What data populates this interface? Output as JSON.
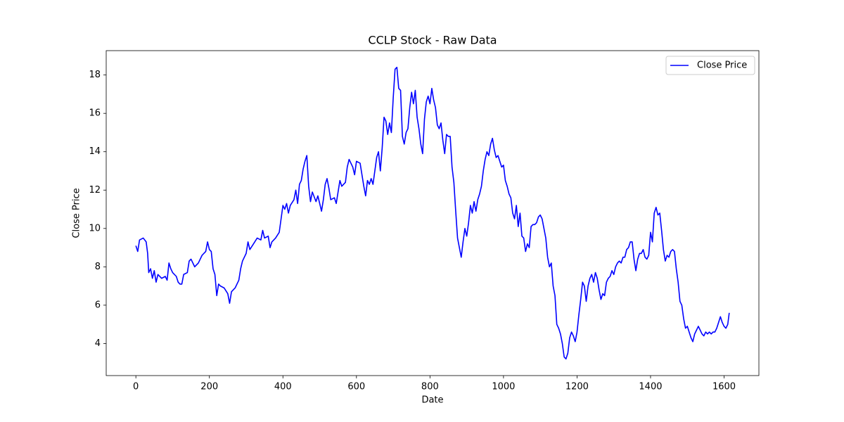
{
  "chart_data": {
    "type": "line",
    "title": "CCLP Stock - Raw Data",
    "xlabel": "Date",
    "ylabel": "Close Price",
    "x": [
      0,
      5,
      10,
      20,
      28,
      32,
      35,
      40,
      45,
      50,
      55,
      60,
      70,
      80,
      85,
      90,
      95,
      100,
      110,
      115,
      120,
      125,
      130,
      140,
      145,
      150,
      160,
      170,
      180,
      190,
      195,
      200,
      205,
      210,
      215,
      220,
      225,
      230,
      240,
      250,
      255,
      260,
      270,
      280,
      285,
      290,
      300,
      305,
      310,
      320,
      330,
      340,
      345,
      350,
      360,
      365,
      370,
      380,
      390,
      395,
      400,
      405,
      410,
      415,
      420,
      430,
      435,
      440,
      445,
      450,
      455,
      460,
      465,
      470,
      475,
      480,
      490,
      495,
      500,
      505,
      510,
      515,
      520,
      525,
      530,
      540,
      545,
      550,
      555,
      560,
      570,
      575,
      580,
      590,
      595,
      600,
      610,
      615,
      620,
      625,
      630,
      635,
      640,
      645,
      650,
      655,
      660,
      665,
      670,
      675,
      680,
      685,
      690,
      695,
      700,
      705,
      710,
      715,
      720,
      725,
      730,
      735,
      740,
      745,
      750,
      755,
      760,
      765,
      770,
      775,
      780,
      785,
      790,
      795,
      800,
      805,
      810,
      815,
      820,
      825,
      830,
      835,
      840,
      845,
      850,
      855,
      860,
      865,
      870,
      875,
      880,
      885,
      890,
      895,
      900,
      905,
      910,
      915,
      920,
      925,
      930,
      935,
      940,
      945,
      950,
      955,
      960,
      965,
      970,
      975,
      980,
      985,
      990,
      995,
      1000,
      1005,
      1010,
      1015,
      1020,
      1025,
      1030,
      1035,
      1040,
      1045,
      1050,
      1055,
      1060,
      1065,
      1070,
      1075,
      1080,
      1085,
      1090,
      1095,
      1100,
      1105,
      1110,
      1115,
      1120,
      1125,
      1130,
      1135,
      1140,
      1145,
      1150,
      1155,
      1160,
      1165,
      1170,
      1175,
      1180,
      1185,
      1190,
      1195,
      1200,
      1205,
      1210,
      1215,
      1220,
      1225,
      1230,
      1235,
      1240,
      1245,
      1250,
      1255,
      1260,
      1265,
      1270,
      1275,
      1280,
      1285,
      1290,
      1295,
      1300,
      1305,
      1310,
      1315,
      1320,
      1325,
      1330,
      1335,
      1340,
      1345,
      1350,
      1355,
      1360,
      1365,
      1370,
      1375,
      1380,
      1385,
      1390,
      1395,
      1400,
      1405,
      1410,
      1415,
      1420,
      1425,
      1430,
      1435,
      1440,
      1445,
      1450,
      1455,
      1460,
      1465,
      1470,
      1475,
      1480,
      1485,
      1490,
      1495,
      1500,
      1505,
      1510,
      1515,
      1520,
      1525,
      1530,
      1535,
      1540,
      1545,
      1550,
      1555,
      1560,
      1565,
      1570,
      1575,
      1580,
      1585,
      1590,
      1595,
      1600,
      1605,
      1610,
      1614
    ],
    "series": [
      {
        "name": "Close Price",
        "color": "#0000ff",
        "values": [
          9.1,
          8.8,
          9.4,
          9.5,
          9.3,
          8.7,
          7.7,
          7.9,
          7.4,
          7.8,
          7.2,
          7.6,
          7.4,
          7.5,
          7.3,
          8.2,
          7.9,
          7.7,
          7.5,
          7.2,
          7.1,
          7.1,
          7.6,
          7.7,
          8.3,
          8.4,
          8.0,
          8.2,
          8.6,
          8.8,
          9.3,
          8.9,
          8.8,
          7.9,
          7.6,
          6.5,
          7.1,
          7.0,
          6.9,
          6.6,
          6.1,
          6.7,
          6.9,
          7.3,
          7.9,
          8.3,
          8.7,
          9.3,
          8.9,
          9.2,
          9.5,
          9.4,
          9.9,
          9.5,
          9.6,
          9.0,
          9.3,
          9.5,
          9.8,
          10.5,
          11.2,
          11.0,
          11.3,
          10.8,
          11.2,
          11.5,
          12.0,
          11.3,
          12.3,
          12.5,
          13.1,
          13.5,
          13.8,
          12.2,
          11.4,
          11.9,
          11.4,
          11.7,
          11.3,
          10.9,
          11.5,
          12.3,
          12.6,
          12.1,
          11.5,
          11.6,
          11.3,
          11.9,
          12.5,
          12.2,
          12.4,
          13.2,
          13.6,
          13.2,
          12.8,
          13.5,
          13.4,
          12.8,
          12.2,
          11.7,
          12.5,
          12.3,
          12.6,
          12.3,
          13.0,
          13.7,
          14.0,
          13.0,
          14.2,
          15.8,
          15.6,
          14.9,
          15.5,
          15.0,
          16.8,
          18.3,
          18.4,
          17.3,
          17.2,
          14.8,
          14.4,
          15.0,
          15.2,
          16.3,
          17.1,
          16.5,
          17.2,
          15.8,
          15.2,
          14.4,
          13.9,
          15.7,
          16.6,
          16.9,
          16.5,
          17.3,
          16.7,
          16.3,
          15.4,
          15.2,
          15.5,
          14.6,
          13.9,
          14.9,
          14.8,
          14.8,
          13.2,
          12.4,
          10.9,
          9.5,
          9.0,
          8.5,
          9.3,
          10.0,
          9.6,
          10.3,
          11.2,
          10.8,
          11.4,
          10.9,
          11.5,
          11.8,
          12.2,
          13.0,
          13.6,
          14.0,
          13.8,
          14.4,
          14.7,
          14.1,
          13.7,
          13.8,
          13.5,
          13.2,
          13.3,
          12.5,
          12.2,
          11.8,
          11.6,
          10.8,
          10.5,
          11.2,
          10.1,
          10.8,
          9.6,
          9.5,
          8.8,
          9.2,
          9.0,
          10.1,
          10.2,
          10.2,
          10.3,
          10.6,
          10.7,
          10.5,
          10.0,
          9.5,
          8.5,
          8.0,
          8.2,
          7.0,
          6.5,
          5.0,
          4.8,
          4.5,
          4.0,
          3.3,
          3.2,
          3.5,
          4.3,
          4.6,
          4.4,
          4.1,
          4.6,
          5.5,
          6.3,
          7.2,
          7.0,
          6.2,
          7.0,
          7.4,
          7.6,
          7.2,
          7.7,
          7.4,
          6.8,
          6.3,
          6.6,
          6.5,
          7.2,
          7.4,
          7.5,
          7.8,
          7.6,
          8.0,
          8.2,
          8.3,
          8.2,
          8.5,
          8.5,
          8.9,
          9.0,
          9.3,
          9.3,
          8.4,
          7.8,
          8.4,
          8.7,
          8.7,
          8.9,
          8.5,
          8.4,
          8.6,
          9.8,
          9.3,
          10.8,
          11.1,
          10.7,
          10.8,
          9.9,
          8.9,
          8.3,
          8.6,
          8.5,
          8.8,
          8.9,
          8.8,
          7.9,
          7.2,
          6.2,
          6.0,
          5.3,
          4.8,
          4.9,
          4.6,
          4.3,
          4.1,
          4.5,
          4.7,
          4.9,
          4.7,
          4.5,
          4.4,
          4.6,
          4.5,
          4.6,
          4.5,
          4.6,
          4.6,
          4.8,
          5.1,
          5.4,
          5.1,
          4.9,
          4.8,
          5.0,
          5.6
        ]
      }
    ],
    "xlim": [
      -80.7,
      1694.7
    ],
    "ylim": [
      2.33,
      19.27
    ],
    "xticks": [
      0,
      200,
      400,
      600,
      800,
      1000,
      1200,
      1400,
      1600
    ],
    "yticks": [
      4,
      6,
      8,
      10,
      12,
      14,
      16,
      18
    ],
    "legend": "upper right"
  }
}
